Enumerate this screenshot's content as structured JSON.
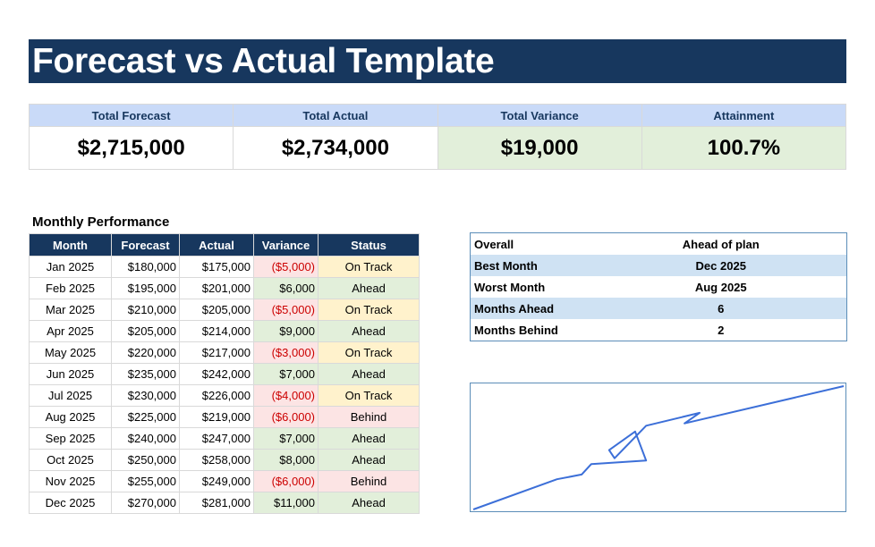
{
  "title": "Forecast vs Actual Template",
  "kpis": [
    {
      "label": "Total Forecast",
      "value": "$2,715,000"
    },
    {
      "label": "Total Actual",
      "value": "$2,734,000"
    },
    {
      "label": "Total Variance",
      "value": "$19,000"
    },
    {
      "label": "Attainment",
      "value": "100.7%"
    }
  ],
  "monthly": {
    "title": "Monthly Performance",
    "headers": [
      "Month",
      "Forecast",
      "Actual",
      "Variance",
      "Status"
    ],
    "rows": [
      {
        "month": "Jan 2025",
        "forecast": "$180,000",
        "actual": "$175,000",
        "variance": "($5,000)",
        "status": "On Track"
      },
      {
        "month": "Feb 2025",
        "forecast": "$195,000",
        "actual": "$201,000",
        "variance": "$6,000",
        "status": "Ahead"
      },
      {
        "month": "Mar 2025",
        "forecast": "$210,000",
        "actual": "$205,000",
        "variance": "($5,000)",
        "status": "On Track"
      },
      {
        "month": "Apr 2025",
        "forecast": "$205,000",
        "actual": "$214,000",
        "variance": "$9,000",
        "status": "Ahead"
      },
      {
        "month": "May 2025",
        "forecast": "$220,000",
        "actual": "$217,000",
        "variance": "($3,000)",
        "status": "On Track"
      },
      {
        "month": "Jun 2025",
        "forecast": "$235,000",
        "actual": "$242,000",
        "variance": "$7,000",
        "status": "Ahead"
      },
      {
        "month": "Jul 2025",
        "forecast": "$230,000",
        "actual": "$226,000",
        "variance": "($4,000)",
        "status": "On Track"
      },
      {
        "month": "Aug 2025",
        "forecast": "$225,000",
        "actual": "$219,000",
        "variance": "($6,000)",
        "status": "Behind"
      },
      {
        "month": "Sep 2025",
        "forecast": "$240,000",
        "actual": "$247,000",
        "variance": "$7,000",
        "status": "Ahead"
      },
      {
        "month": "Oct 2025",
        "forecast": "$250,000",
        "actual": "$258,000",
        "variance": "$8,000",
        "status": "Ahead"
      },
      {
        "month": "Nov 2025",
        "forecast": "$255,000",
        "actual": "$249,000",
        "variance": "($6,000)",
        "status": "Behind"
      },
      {
        "month": "Dec 2025",
        "forecast": "$270,000",
        "actual": "$281,000",
        "variance": "$11,000",
        "status": "Ahead"
      }
    ]
  },
  "summary": [
    {
      "label": "Overall",
      "value": "Ahead of plan"
    },
    {
      "label": "Best Month",
      "value": "Dec 2025"
    },
    {
      "label": "Worst Month",
      "value": "Aug 2025"
    },
    {
      "label": "Months Ahead",
      "value": "6"
    },
    {
      "label": "Months Behind",
      "value": "2"
    }
  ],
  "chart_data": {
    "type": "line",
    "series": [
      {
        "values": [
          175000,
          201000,
          205000,
          214000,
          217000,
          242000,
          226000,
          219000,
          247000,
          258000,
          249000,
          281000
        ]
      }
    ],
    "x": [
      0,
      61,
      79,
      86,
      126,
      118,
      99,
      103,
      126,
      165,
      154,
      270
    ],
    "ylim": [
      175000,
      281000
    ],
    "line_color": "#3c6fd8",
    "axes_visible": false,
    "grid": false
  },
  "colors": {
    "title_bg": "#17375e",
    "kpi_header_bg": "#c9daf8",
    "positive_bg": "#e2efda",
    "negative_bg": "#fce4e4",
    "on_track_bg": "#fff2cc",
    "negative_text": "#cc0000",
    "summary_shade": "#cfe2f3"
  }
}
